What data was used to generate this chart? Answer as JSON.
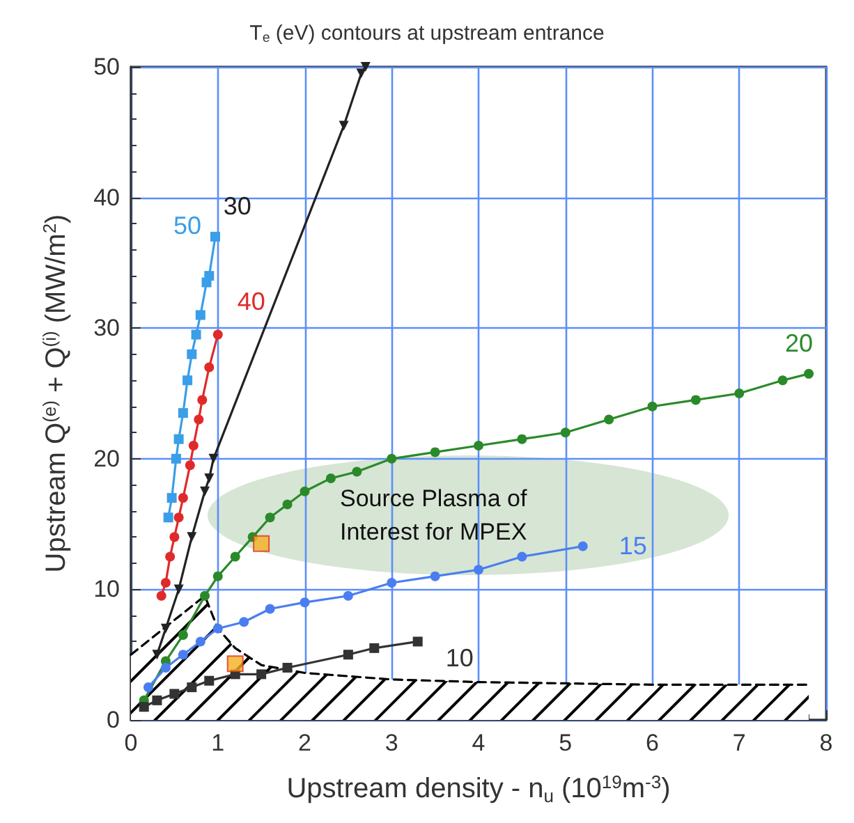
{
  "chart_data": {
    "type": "line",
    "title": "T$_{e}$ (eV) contours at upstream entrance",
    "xlabel": "Upstream density - n$_{u}$ (10$^{19}$m$^{-3}$)",
    "ylabel": "Upstream Q$^{(e)}$ + Q$^{(i)}$ (MW/m$^{2}$)",
    "xlim": [
      0,
      8
    ],
    "xticks": [
      0,
      1,
      2,
      3,
      4,
      5,
      6,
      7,
      8
    ],
    "ylim": [
      0,
      50
    ],
    "yticks": [
      0,
      10,
      20,
      30,
      40,
      50
    ],
    "grid": true,
    "legend": false,
    "series": [
      {
        "name": "50",
        "color": "#3a9ee8",
        "marker": "square",
        "x": [
          0.43,
          0.47,
          0.52,
          0.55,
          0.6,
          0.65,
          0.7,
          0.75,
          0.8,
          0.87,
          0.9,
          0.97
        ],
        "values": [
          15.5,
          17,
          20,
          21.5,
          23.5,
          26,
          28,
          29.5,
          31,
          33.5,
          34,
          37
        ]
      },
      {
        "name": "40",
        "color": "#e02a2a",
        "marker": "circle",
        "x": [
          0.35,
          0.4,
          0.45,
          0.5,
          0.55,
          0.6,
          0.68,
          0.72,
          0.78,
          0.82,
          0.9,
          1.0
        ],
        "values": [
          9.5,
          10.5,
          12.5,
          14,
          15.5,
          17,
          19.5,
          21,
          23,
          24.5,
          27,
          29.5
        ]
      },
      {
        "name": "30",
        "color": "#222222",
        "marker": "triangle",
        "x": [
          0.3,
          0.4,
          0.55,
          0.7,
          0.85,
          0.9,
          0.95,
          2.45,
          2.65,
          2.7
        ],
        "values": [
          5,
          7,
          10,
          14,
          17.5,
          18.5,
          20,
          45.5,
          49.5,
          50
        ]
      },
      {
        "name": "20",
        "color": "#2a8a2a",
        "marker": "circle",
        "x": [
          0.15,
          0.4,
          0.6,
          0.85,
          1.0,
          1.2,
          1.4,
          1.6,
          1.8,
          2.0,
          2.3,
          2.6,
          3.0,
          3.5,
          4.0,
          4.5,
          5.0,
          5.5,
          6.0,
          6.5,
          7.0,
          7.5,
          7.8
        ],
        "values": [
          1.5,
          4.5,
          6.5,
          9.5,
          11,
          12.5,
          14,
          15.5,
          16.5,
          17.5,
          18.5,
          19,
          20,
          20.5,
          21,
          21.5,
          22,
          23,
          24,
          24.5,
          25,
          26,
          26.5
        ]
      },
      {
        "name": "15",
        "color": "#4a7ef0",
        "marker": "circle",
        "x": [
          0.2,
          0.4,
          0.6,
          0.8,
          1.0,
          1.3,
          1.6,
          2.0,
          2.5,
          3.0,
          3.5,
          4.0,
          4.5,
          5.2
        ],
        "values": [
          2.5,
          4,
          5,
          6,
          7,
          7.5,
          8.5,
          9,
          9.5,
          10.5,
          11,
          11.5,
          12.5,
          13.3
        ]
      },
      {
        "name": "10",
        "color": "#333333",
        "marker": "square",
        "x": [
          0.15,
          0.3,
          0.5,
          0.7,
          0.9,
          1.2,
          1.5,
          1.8,
          2.5,
          2.8,
          3.3
        ],
        "values": [
          1,
          1.5,
          2,
          2.5,
          3,
          3.5,
          3.5,
          4,
          5,
          5.5,
          6
        ]
      },
      {
        "type": "scatter",
        "color": "#f5b020",
        "marker": "square",
        "x": [
          1.2,
          1.5
        ],
        "values": [
          4.3,
          13.5
        ]
      },
      {
        "type": "area",
        "color": "#000000",
        "marker": "none",
        "line_style": "dashed",
        "x": [
          0,
          0.85,
          1.0,
          1.2,
          1.5,
          2.0,
          3.0,
          4.0,
          5.0,
          6.0,
          7.0,
          7.8
        ],
        "values": [
          5,
          9.5,
          7,
          5.5,
          4.2,
          3.6,
          3.1,
          2.9,
          2.8,
          2.7,
          2.7,
          2.7
        ]
      }
    ],
    "annotations": [
      "Source Plasma of\nInterest for MPEX"
    ]
  }
}
